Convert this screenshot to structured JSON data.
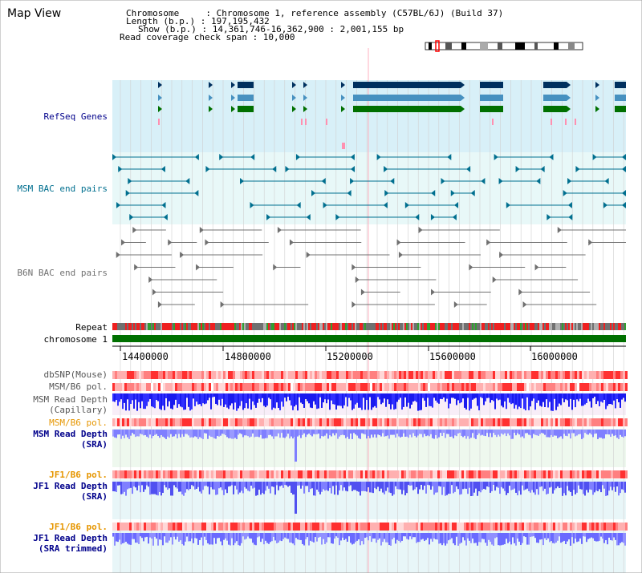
{
  "header": {
    "title": "Map View",
    "info_lines": [
      "Chromosome     : Chromosome 1, reference assembly (C57BL/6J) (Build 37)",
      "Length (b.p.) : 197,195,432",
      "Show (b.p.) : 14,361,746-16,362,900 : 2,001,155 bp",
      "Read coverage check span : 10,000"
    ]
  },
  "colors": {
    "refseq_bg": "#d8f0f8",
    "bac_bg": "#e8f8f8",
    "label_blue": "#00008b",
    "label_teal": "#006f8f",
    "label_orange": "#e69600",
    "refseq_dark": "#00305f",
    "refseq_mid": "#4791c0",
    "refseq_green": "#007000",
    "msm_bac": "#006f8f",
    "b6n_bac": "#707070",
    "chromosome": "#007000",
    "depth_dark": "#1a1aee",
    "depth_light": "#7f7fff"
  },
  "tracks": {
    "refseq_label": "RefSeq Genes",
    "msm_bac_label": "MSM BAC end pairs",
    "b6n_bac_label": "B6N BAC end pairs",
    "repeat_label": "Repeat",
    "chromosome_label": "chromosome 1",
    "dbsnp_label": "dbSNP(Mouse)",
    "msm_b6_pol_label": "MSM/B6 pol.",
    "msm_depth_cap_label_1": "MSM Read Depth",
    "msm_depth_cap_label_2": "(Capillary)",
    "msm_b6_pol2_label": "MSM/B6 pol.",
    "msm_depth_sra_label_1": "MSM Read Depth",
    "msm_depth_sra_label_2": "(SRA)",
    "jf1_b6_pol_label": "JF1/B6 pol.",
    "jf1_depth_sra_label_1": "JF1 Read Depth",
    "jf1_depth_sra_label_2": "(SRA)",
    "jf1_b6_pol2_label": "JF1/B6 pol.",
    "jf1_depth_trim_label_1": "JF1 Read Depth",
    "jf1_depth_trim_label_2": "(SRA trimmed)"
  },
  "axis": {
    "ticks": [
      "14400000",
      "14800000",
      "15200000",
      "15600000",
      "16000000"
    ]
  }
}
